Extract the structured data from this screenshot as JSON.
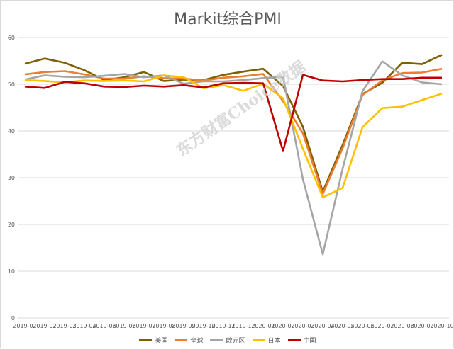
{
  "chart_data": {
    "type": "line",
    "title": "Markit综合PMI",
    "xlabel": "",
    "ylabel": "",
    "ylim": [
      0,
      60
    ],
    "yticks": [
      0,
      10,
      20,
      30,
      40,
      50,
      60
    ],
    "grid": true,
    "legend_position": "bottom",
    "categories": [
      "2019-01",
      "2019-02",
      "2019-03",
      "2019-04",
      "2019-05",
      "2019-06",
      "2019-07",
      "2019-08",
      "2019-09",
      "2019-10",
      "2019-11",
      "2019-12",
      "2020-01",
      "2020-02",
      "2020-03",
      "2020-04",
      "2020-05",
      "2020-06",
      "2020-07",
      "2020-08",
      "2020-09",
      "2020-10"
    ],
    "series": [
      {
        "name": "美国",
        "color": "#7f6000",
        "values": [
          54.4,
          55.5,
          54.6,
          53.0,
          50.9,
          51.5,
          52.6,
          50.7,
          51.0,
          50.9,
          52.0,
          52.7,
          53.3,
          49.6,
          40.9,
          27.0,
          37.0,
          47.9,
          50.3,
          54.6,
          54.3,
          56.3
        ]
      },
      {
        "name": "全球",
        "color": "#ed7d31",
        "values": [
          52.1,
          52.6,
          52.8,
          52.1,
          51.2,
          51.2,
          51.7,
          51.3,
          51.2,
          50.8,
          51.4,
          51.7,
          52.2,
          46.4,
          39.5,
          26.5,
          36.3,
          47.7,
          50.8,
          52.4,
          52.5,
          53.3
        ]
      },
      {
        "name": "欧元区",
        "color": "#a5a5a5",
        "values": [
          51.0,
          51.9,
          51.6,
          51.5,
          51.8,
          52.2,
          51.5,
          51.9,
          50.1,
          50.6,
          50.6,
          50.9,
          51.3,
          51.6,
          29.7,
          13.6,
          31.9,
          48.5,
          54.9,
          51.9,
          50.4,
          50.0
        ]
      },
      {
        "name": "日本",
        "color": "#ffc000",
        "values": [
          50.9,
          50.7,
          50.4,
          50.8,
          50.7,
          50.8,
          50.6,
          51.9,
          51.5,
          49.1,
          49.8,
          48.6,
          50.1,
          47.0,
          36.2,
          25.8,
          27.8,
          40.8,
          44.9,
          45.2,
          46.6,
          48.0
        ]
      },
      {
        "name": "中国",
        "color": "#c00000",
        "values": [
          49.5,
          49.2,
          50.5,
          50.2,
          49.5,
          49.4,
          49.7,
          49.5,
          49.8,
          49.3,
          50.2,
          50.3,
          50.2,
          35.7,
          52.0,
          50.8,
          50.6,
          50.9,
          51.1,
          51.1,
          51.4,
          51.4
        ]
      }
    ],
    "watermark": "东方财富Choice数据"
  }
}
